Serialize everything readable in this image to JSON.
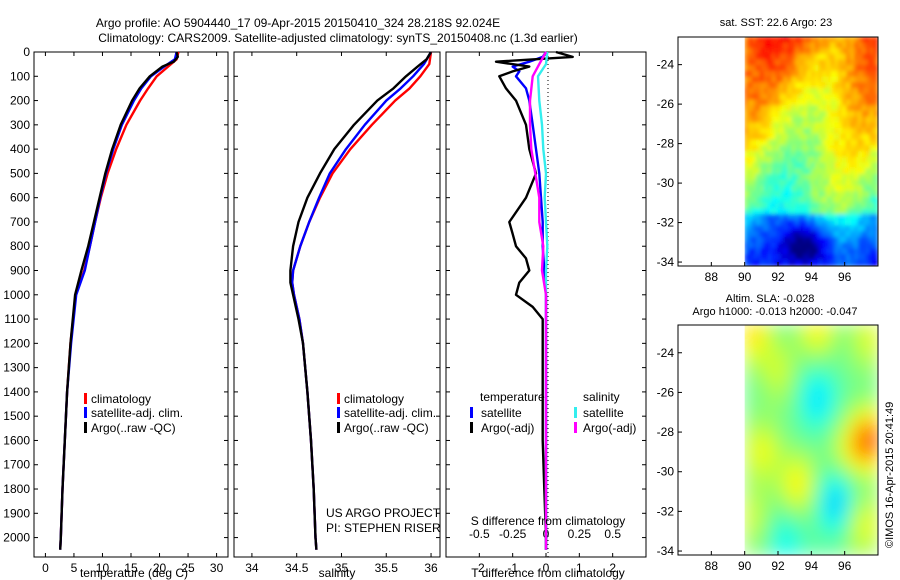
{
  "header": {
    "title_line1": "Argo profile: AO 5904440_17 09-Apr-2015 20150410_324 28.218S 92.024E",
    "title_line2": "Climatology: CARS2009. Satellite-adjusted climatology: synTS_20150408.nc (1.3d earlier)"
  },
  "credit": "US ARGO PROJECT",
  "pi": "PI: STEPHEN RISER",
  "footer_stamp": "©IMOS 16-Apr-2015 20:41:49",
  "colors": {
    "climatology": "#ff0000",
    "satellite": "#0000ff",
    "argo": "#000000",
    "s_satellite": "#33eeee",
    "s_argo": "#ff00ff"
  },
  "chart_data": [
    {
      "type": "line",
      "title": "",
      "xlabel": "temperature (deg C)",
      "ylabel": "",
      "xlim": [
        -2,
        32
      ],
      "ylim": [
        2080,
        0
      ],
      "xticks": [
        "0",
        "5",
        "10",
        "15",
        "20",
        "25",
        "30"
      ],
      "yticks": [
        "0",
        "100",
        "200",
        "300",
        "400",
        "500",
        "600",
        "700",
        "800",
        "900",
        "1000",
        "1100",
        "1200",
        "1300",
        "1400",
        "1500",
        "1600",
        "1700",
        "1800",
        "1900",
        "2000"
      ],
      "legend": [
        "climatology",
        "satellite-adj. clim.",
        "Argo(..raw -QC)"
      ],
      "legend_position": "lower-center",
      "series": [
        {
          "name": "climatology",
          "color": "#ff0000",
          "depth": [
            0,
            30,
            60,
            100,
            150,
            200,
            300,
            400,
            500,
            600,
            700,
            800,
            900,
            1000,
            1200,
            1400,
            1600,
            1800,
            2000,
            2050
          ],
          "values": [
            23.3,
            23.0,
            21.5,
            19.5,
            18.0,
            16.6,
            14.2,
            12.4,
            10.9,
            9.7,
            8.7,
            7.8,
            6.8,
            5.3,
            4.4,
            3.8,
            3.4,
            3.0,
            2.7,
            2.6
          ]
        },
        {
          "name": "satellite-adj. clim.",
          "color": "#0000ff",
          "depth": [
            0,
            30,
            60,
            100,
            150,
            200,
            300,
            400,
            500,
            600,
            700,
            800,
            900,
            1000,
            1200,
            1400,
            1600,
            1800,
            2000,
            2050
          ],
          "values": [
            23.0,
            22.7,
            20.8,
            18.5,
            16.8,
            15.5,
            13.4,
            11.9,
            10.6,
            9.6,
            8.7,
            7.8,
            6.9,
            5.4,
            4.5,
            3.8,
            3.4,
            3.0,
            2.7,
            2.6
          ]
        },
        {
          "name": "Argo(..raw -QC)",
          "color": "#000000",
          "depth": [
            0,
            20,
            40,
            60,
            100,
            150,
            200,
            300,
            400,
            500,
            600,
            700,
            800,
            900,
            1000,
            1200,
            1400,
            1600,
            1800,
            2000,
            2050
          ],
          "values": [
            23.0,
            23.2,
            22.5,
            20.5,
            18.3,
            16.5,
            15.2,
            13.2,
            11.7,
            10.5,
            9.5,
            8.5,
            7.5,
            6.3,
            5.2,
            4.4,
            3.8,
            3.4,
            3.0,
            2.7,
            2.6
          ]
        }
      ]
    },
    {
      "type": "line",
      "title": "",
      "xlabel": "salinity",
      "ylabel": "",
      "xlim": [
        33.8,
        36.1
      ],
      "ylim": [
        2080,
        0
      ],
      "xticks": [
        "34",
        "34.5",
        "35",
        "35.5",
        "36"
      ],
      "legend": [
        "climatology",
        "satellite-adj. clim.",
        "Argo(..raw -QC)"
      ],
      "legend_position": "lower-center",
      "series": [
        {
          "name": "climatology",
          "color": "#ff0000",
          "depth": [
            0,
            50,
            100,
            150,
            200,
            300,
            400,
            500,
            600,
            700,
            800,
            900,
            950,
            1000,
            1100,
            1200,
            1400,
            1600,
            1800,
            2000,
            2050
          ],
          "values": [
            36.0,
            35.98,
            35.88,
            35.76,
            35.6,
            35.34,
            35.1,
            34.9,
            34.76,
            34.64,
            34.54,
            34.46,
            34.45,
            34.47,
            34.53,
            34.57,
            34.62,
            34.66,
            34.69,
            34.71,
            34.72
          ]
        },
        {
          "name": "satellite-adj. clim.",
          "color": "#0000ff",
          "depth": [
            0,
            50,
            100,
            150,
            200,
            300,
            400,
            500,
            600,
            700,
            800,
            900,
            950,
            1000,
            1100,
            1200,
            1400,
            1600,
            1800,
            2000,
            2050
          ],
          "values": [
            36.0,
            35.92,
            35.8,
            35.66,
            35.5,
            35.26,
            35.05,
            34.87,
            34.75,
            34.64,
            34.54,
            34.46,
            34.45,
            34.47,
            34.53,
            34.57,
            34.62,
            34.66,
            34.69,
            34.71,
            34.72
          ]
        },
        {
          "name": "Argo(..raw -QC)",
          "color": "#000000",
          "depth": [
            0,
            30,
            60,
            100,
            150,
            200,
            300,
            400,
            500,
            600,
            700,
            800,
            900,
            950,
            1000,
            1100,
            1200,
            1400,
            1600,
            1800,
            2000,
            2050
          ],
          "values": [
            36.0,
            35.95,
            35.85,
            35.72,
            35.58,
            35.4,
            35.14,
            34.92,
            34.76,
            34.62,
            34.52,
            34.46,
            34.43,
            34.43,
            34.46,
            34.52,
            34.57,
            34.62,
            34.66,
            34.69,
            34.71,
            34.72
          ]
        }
      ]
    },
    {
      "type": "line",
      "title": "",
      "xlabel": "T difference from climatology",
      "xlabel_top": "S difference from climatology",
      "xlim": [
        -3,
        3
      ],
      "ylim": [
        2080,
        0
      ],
      "xticks": [
        "-2",
        "-1",
        "0",
        "1",
        "2"
      ],
      "xticks_top": [
        "-0.5",
        "-0.25",
        "0",
        "0.25",
        "0.5"
      ],
      "legend_left_title": "temperature",
      "legend_right_title": "salinity",
      "legend": [
        "satellite",
        "Argo(-adj)",
        "satellite",
        "Argo(-adj)"
      ],
      "legend_position": "lower-center",
      "series": [
        {
          "name": "temperature satellite",
          "color": "#0000ff",
          "depth": [
            0,
            20,
            40,
            60,
            80,
            100,
            150,
            200,
            300,
            400,
            500,
            600,
            700,
            800,
            900,
            1000,
            1100,
            1200,
            1400,
            1600,
            1800,
            2000,
            2050
          ],
          "values": [
            0.0,
            -0.1,
            -0.5,
            -1.0,
            -0.8,
            -0.9,
            -0.6,
            -0.5,
            -0.4,
            -0.3,
            -0.2,
            -0.15,
            -0.1,
            -0.1,
            -0.05,
            0.0,
            0.0,
            0.0,
            0.0,
            0.0,
            0.0,
            0.0,
            0.0
          ]
        },
        {
          "name": "temperature Argo(-adj)",
          "color": "#000000",
          "depth": [
            0,
            20,
            40,
            60,
            80,
            100,
            150,
            200,
            300,
            400,
            500,
            600,
            700,
            750,
            800,
            850,
            900,
            950,
            1000,
            1050,
            1100,
            1200,
            1400,
            1600,
            1800,
            2000,
            2050
          ],
          "values": [
            0.3,
            0.8,
            -1.5,
            -0.5,
            -1.0,
            -1.4,
            -1.2,
            -0.9,
            -0.6,
            -0.5,
            -0.3,
            -0.6,
            -1.1,
            -1.0,
            -0.9,
            -0.6,
            -0.5,
            -0.8,
            -0.9,
            -0.4,
            -0.1,
            -0.1,
            -0.1,
            -0.1,
            -0.05,
            0.0,
            0.0
          ]
        },
        {
          "name": "salinity satellite",
          "color": "#33eeee",
          "depth": [
            0,
            50,
            100,
            200,
            300,
            400,
            500,
            600,
            700,
            800,
            900,
            1000,
            1200,
            1400,
            1600,
            1800,
            2000,
            2050
          ],
          "values": [
            0.01,
            0.0,
            -0.06,
            -0.05,
            -0.03,
            -0.02,
            0.0,
            -0.01,
            0.0,
            0.01,
            0.0,
            0.0,
            0.0,
            0.0,
            0.0,
            0.0,
            0.0,
            0.0
          ]
        },
        {
          "name": "salinity Argo(-adj)",
          "color": "#ff00ff",
          "depth": [
            0,
            50,
            100,
            200,
            300,
            400,
            500,
            600,
            700,
            800,
            900,
            1000,
            1100,
            1200,
            1400,
            1600,
            1800,
            2000,
            2050
          ],
          "values": [
            0.0,
            -0.05,
            -0.1,
            -0.12,
            -0.12,
            -0.11,
            -0.08,
            -0.05,
            -0.05,
            -0.02,
            -0.03,
            0.0,
            0.0,
            0.0,
            0.0,
            0.0,
            0.0,
            0.0,
            0.0
          ]
        }
      ]
    },
    {
      "type": "heatmap",
      "title": "sat. SST: 22.6  Argo: 23",
      "xlim": [
        86,
        98
      ],
      "ylim": [
        -34.2,
        -22.6
      ],
      "xticks": [
        "88",
        "90",
        "92",
        "94",
        "96"
      ],
      "yticks": [
        "-24",
        "-26",
        "-28",
        "-30",
        "-32",
        "-34"
      ],
      "data_start_lon": 90,
      "colormap": "jet"
    },
    {
      "type": "heatmap",
      "title": "Altim. SLA: -0.028",
      "subtitle": "Argo h1000: -0.013 h2000: -0.047",
      "xlim": [
        86,
        98
      ],
      "ylim": [
        -34.2,
        -22.6
      ],
      "xticks": [
        "88",
        "90",
        "92",
        "94",
        "96"
      ],
      "yticks": [
        "-24",
        "-26",
        "-28",
        "-30",
        "-32",
        "-34"
      ],
      "data_start_lon": 90,
      "colormap": "jet"
    }
  ]
}
